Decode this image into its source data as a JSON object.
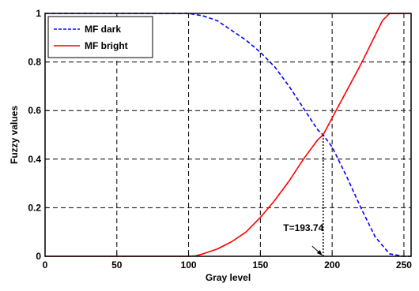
{
  "chart_data": {
    "type": "line",
    "xlabel": "Gray level",
    "ylabel": "Fuzzy values",
    "xlim": [
      0,
      255
    ],
    "ylim": [
      0,
      1
    ],
    "x_ticks": [
      "0",
      "50",
      "100",
      "150",
      "200",
      "250"
    ],
    "y_ticks": [
      "0",
      "0.2",
      "0.4",
      "0.6",
      "0.8",
      "1"
    ],
    "grid": true,
    "legend_position": "top-left",
    "series": [
      {
        "name": "MF dark",
        "color": "#0000ff",
        "style": "dashed",
        "x": [
          0,
          100,
          110,
          120,
          130,
          140,
          150,
          160,
          170,
          180,
          190,
          193.74,
          200,
          210,
          220,
          230,
          240,
          250,
          255
        ],
        "y": [
          1,
          1,
          0.99,
          0.97,
          0.93,
          0.89,
          0.84,
          0.78,
          0.7,
          0.61,
          0.52,
          0.5,
          0.45,
          0.33,
          0.2,
          0.08,
          0.01,
          0,
          0
        ]
      },
      {
        "name": "MF bright",
        "color": "#ff0000",
        "style": "solid",
        "x": [
          0,
          100,
          105,
          110,
          120,
          130,
          140,
          150,
          160,
          170,
          180,
          190,
          193.74,
          200,
          210,
          220,
          230,
          235,
          240,
          255
        ],
        "y": [
          0,
          0,
          0.002,
          0.01,
          0.03,
          0.06,
          0.1,
          0.16,
          0.23,
          0.31,
          0.4,
          0.48,
          0.5,
          0.57,
          0.68,
          0.79,
          0.91,
          0.97,
          1,
          1
        ]
      }
    ],
    "annotation": {
      "text": "T=193.74",
      "x": 193.74,
      "y": 0.5
    }
  }
}
